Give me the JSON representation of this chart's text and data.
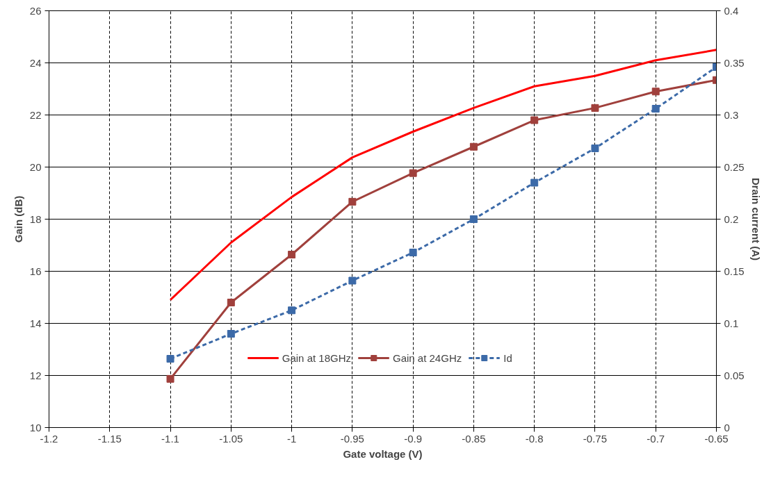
{
  "chart_data": {
    "type": "line",
    "xlabel": "Gate voltage (V)",
    "ylabel": "Gain (dB)",
    "y2label": "Drain current (A)",
    "x": [
      -1.1,
      -1.05,
      -1.0,
      -0.95,
      -0.9,
      -0.85,
      -0.8,
      -0.75,
      -0.7,
      -0.65
    ],
    "series": [
      {
        "name": "Gain at 18GHz",
        "color": "#ff0000",
        "marker": "none",
        "line_style": "solid",
        "values": [
          14.9,
          17.1,
          18.85,
          20.37,
          21.36,
          22.27,
          23.1,
          23.5,
          24.1,
          24.5
        ]
      },
      {
        "name": "Gain at 24GHz",
        "color": "#a0403c",
        "marker": "square",
        "line_style": "solid",
        "values": [
          11.87,
          14.8,
          16.64,
          18.67,
          19.77,
          20.78,
          21.8,
          22.27,
          22.9,
          23.34
        ]
      },
      {
        "name": "Id",
        "color": "#3c6aa8",
        "marker": "square",
        "line_style": "dashed",
        "axis": "y2",
        "values": [
          0.066,
          0.09,
          0.1125,
          0.141,
          0.168,
          0.2,
          0.235,
          0.268,
          0.306,
          0.346
        ]
      }
    ],
    "xlim": [
      -1.2,
      -0.65
    ],
    "xticks": [
      -1.2,
      -1.15,
      -1.1,
      -1.05,
      -1,
      -0.95,
      -0.9,
      -0.85,
      -0.8,
      -0.75,
      -0.7,
      -0.65
    ],
    "ylim": [
      10,
      26
    ],
    "yticks": [
      10,
      12,
      14,
      16,
      18,
      20,
      22,
      24,
      26
    ],
    "y2lim": [
      0,
      0.4
    ],
    "y2ticks": [
      0,
      0.05,
      0.1,
      0.15,
      0.2,
      0.25,
      0.3,
      0.35,
      0.4
    ],
    "grid": true,
    "legend": "bottom"
  }
}
